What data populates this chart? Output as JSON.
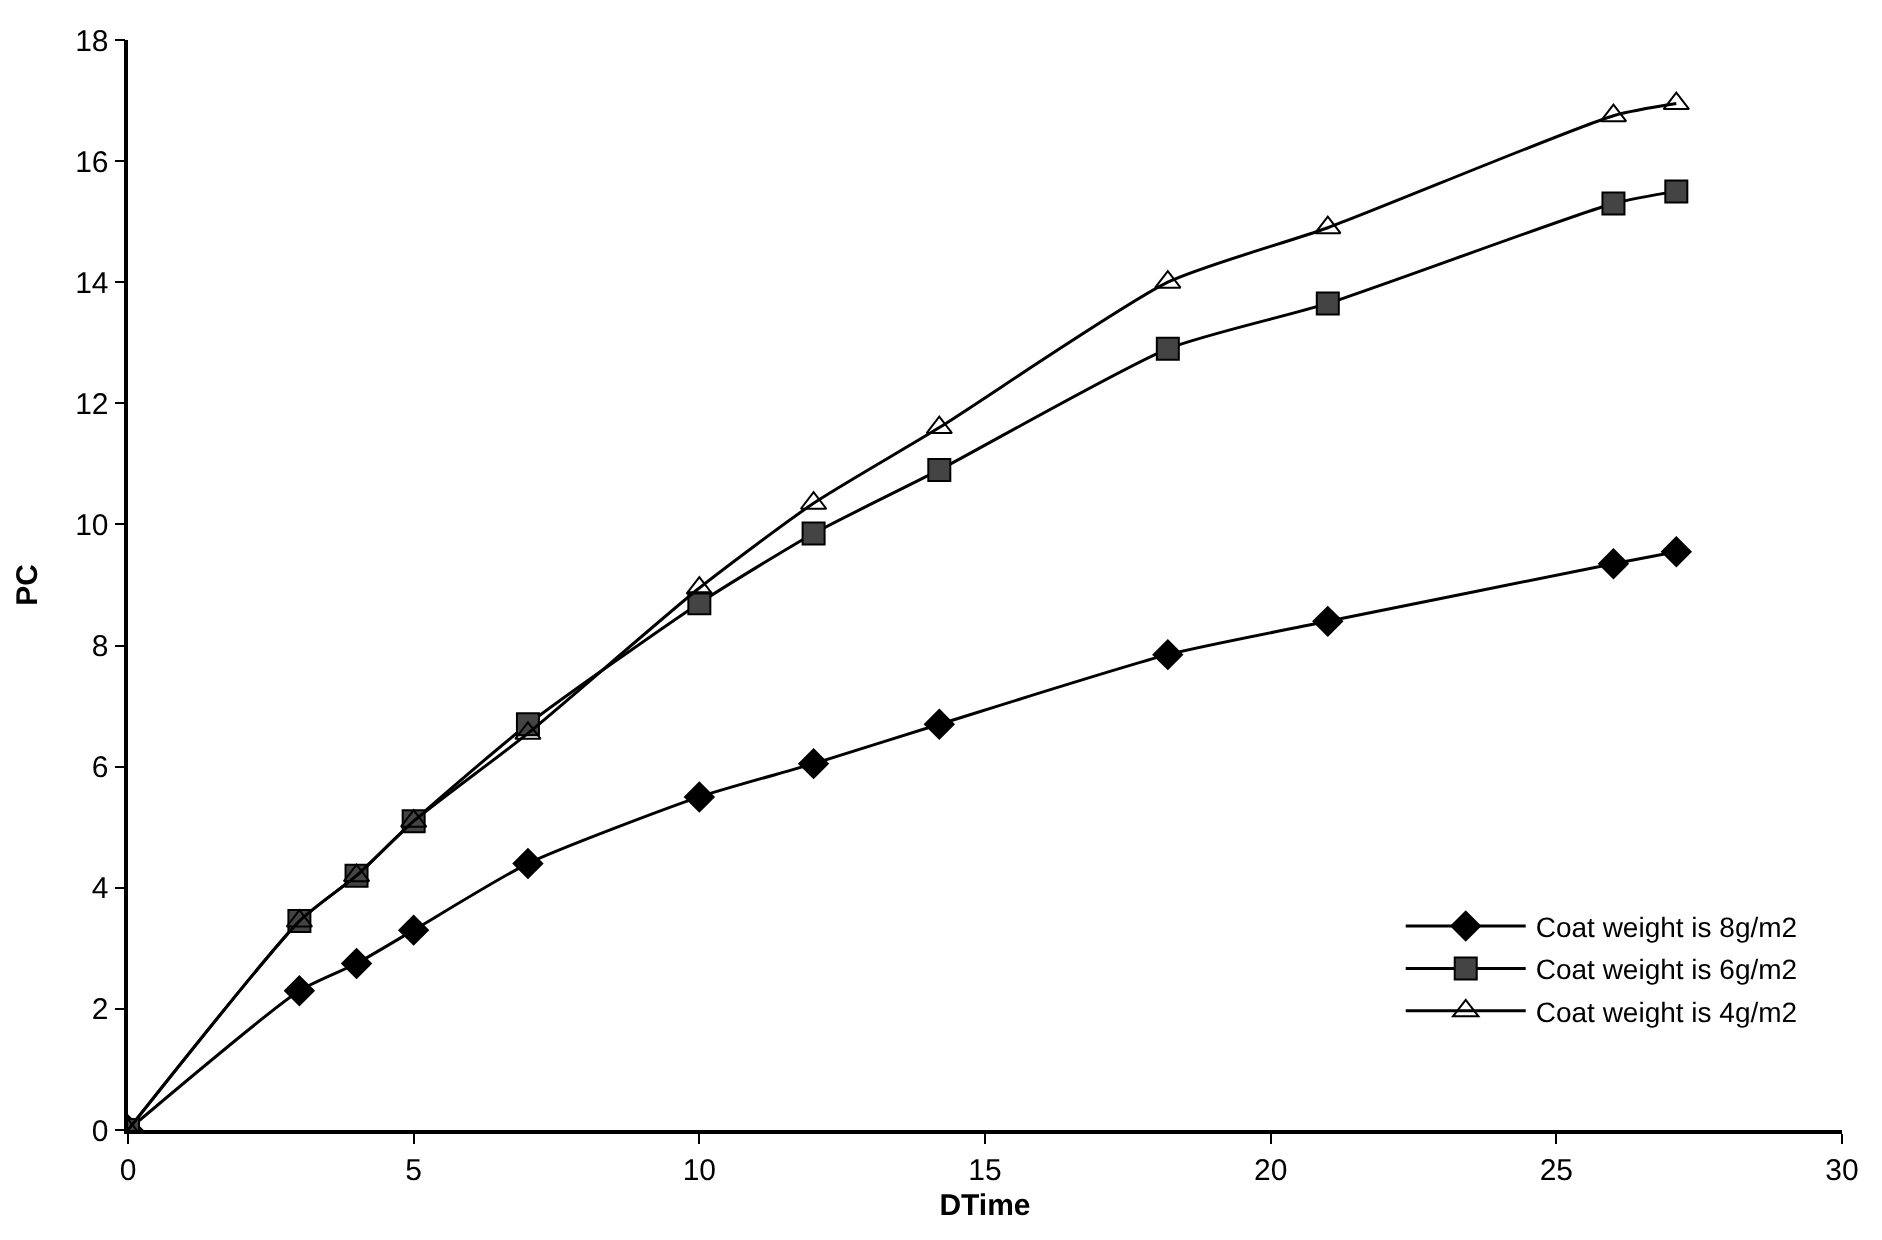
{
  "chart_data": {
    "type": "line",
    "xlabel": "DTime",
    "ylabel": "PC",
    "xlim": [
      0,
      30
    ],
    "xticks": [
      0,
      5,
      10,
      15,
      20,
      25,
      30
    ],
    "ylim": [
      0,
      18
    ],
    "yticks": [
      0,
      2,
      4,
      6,
      8,
      10,
      12,
      14,
      16,
      18
    ],
    "legend": "bottom right",
    "series": [
      {
        "name": "Coat weight is 8g/m2",
        "color": "#000000",
        "marker": "diamond",
        "x": [
          0,
          3,
          4,
          5,
          7,
          10,
          12,
          14.2,
          18.2,
          21,
          26,
          27.1
        ],
        "values": [
          0,
          2.3,
          2.75,
          3.3,
          4.4,
          5.5,
          6.05,
          6.7,
          7.85,
          8.4,
          9.35,
          9.55
        ]
      },
      {
        "name": "Coat weight is 6g/m2",
        "color": "#444444",
        "marker": "square",
        "x": [
          0,
          3,
          4,
          5,
          7,
          10,
          12,
          14.2,
          18.2,
          21,
          26,
          27.1
        ],
        "values": [
          0,
          3.45,
          4.2,
          5.1,
          6.7,
          8.7,
          9.85,
          10.9,
          12.9,
          13.65,
          15.3,
          15.5
        ]
      },
      {
        "name": "Coat weight is 4g/m2",
        "color": "#000000",
        "marker": "triangle",
        "x": [
          0,
          3,
          4,
          5,
          7,
          10,
          12,
          14.2,
          18.2,
          21,
          26,
          27.1
        ],
        "values": [
          0,
          3.45,
          4.2,
          5.1,
          6.55,
          8.95,
          10.35,
          11.6,
          14.0,
          14.9,
          16.75,
          16.95
        ]
      }
    ]
  }
}
